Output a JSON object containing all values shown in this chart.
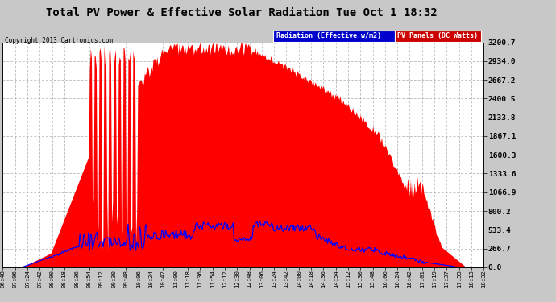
{
  "title": "Total PV Power & Effective Solar Radiation Tue Oct 1 18:32",
  "copyright": "Copyright 2013 Cartronics.com",
  "legend_radiation": "Radiation (Effective w/m2)",
  "legend_pv": "PV Panels (DC Watts)",
  "radiation_color": "#0000ff",
  "pv_fill_color": "#ff0000",
  "background_color": "#c8c8c8",
  "plot_bg_color": "#ffffff",
  "grid_color": "#aaaaaa",
  "ymax": 3200.7,
  "ymin": 0.0,
  "yticks": [
    0.0,
    266.7,
    533.4,
    800.2,
    1066.9,
    1333.6,
    1600.3,
    1867.1,
    2133.8,
    2400.5,
    2667.2,
    2934.0,
    3200.7
  ],
  "ytick_labels": [
    "0.0",
    "266.7",
    "533.4",
    "800.2",
    "1066.9",
    "1333.6",
    "1600.3",
    "1867.1",
    "2133.8",
    "2400.5",
    "2667.2",
    "2934.0",
    "3200.7"
  ],
  "x_labels": [
    "06:48",
    "07:06",
    "07:24",
    "07:42",
    "08:00",
    "08:18",
    "08:36",
    "08:54",
    "09:12",
    "09:30",
    "09:48",
    "10:06",
    "10:24",
    "10:42",
    "11:00",
    "11:18",
    "11:36",
    "11:54",
    "12:12",
    "12:30",
    "12:48",
    "13:06",
    "13:24",
    "13:42",
    "14:00",
    "14:18",
    "14:36",
    "14:54",
    "15:12",
    "15:30",
    "15:48",
    "16:06",
    "16:24",
    "16:42",
    "17:01",
    "17:19",
    "17:37",
    "17:55",
    "18:13",
    "18:32"
  ],
  "n_points": 500
}
